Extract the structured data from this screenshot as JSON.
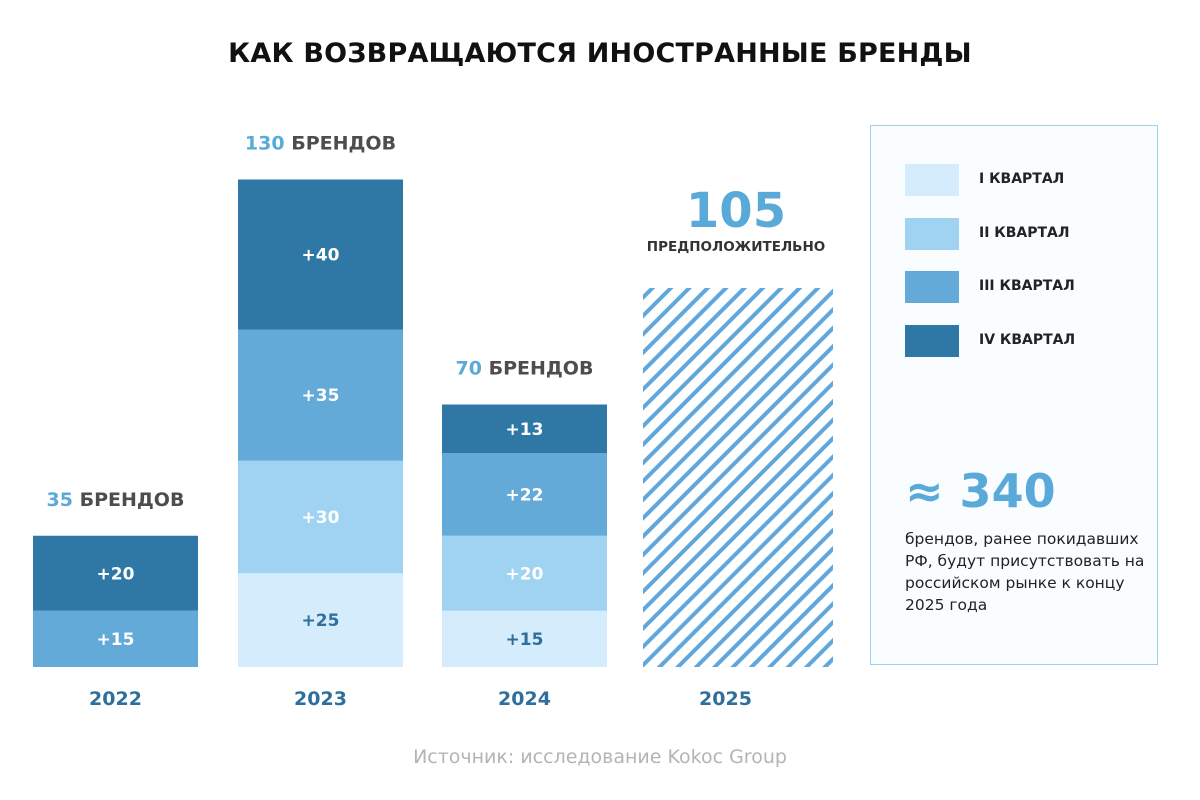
{
  "title": "КАК ВОЗВРАЩАЮТСЯ ИНОСТРАННЫЕ БРЕНДЫ",
  "legend": {
    "items": [
      {
        "label": "I КВАРТАЛ",
        "color": "#d4ecfc"
      },
      {
        "label": "II КВАРТАЛ",
        "color": "#a0d2f2"
      },
      {
        "label": "III КВАРТАЛ",
        "color": "#63aad9"
      },
      {
        "label": "IV КВАРТАЛ",
        "color": "#2f78a6"
      }
    ],
    "total_value": "≈ 340",
    "total_note": "брендов, ранее покидавших РФ, будут присутствовать на российском рынке к концу 2025 года"
  },
  "source": "Источник: исследование Kokoc Group",
  "chart_data": {
    "type": "bar",
    "stacked": true,
    "categories": [
      "2022",
      "2023",
      "2024",
      "2025"
    ],
    "series": [
      {
        "name": "I КВАРТАЛ",
        "values": [
          null,
          25,
          15,
          null
        ]
      },
      {
        "name": "II КВАРТАЛ",
        "values": [
          null,
          30,
          20,
          null
        ]
      },
      {
        "name": "III КВАРТАЛ",
        "values": [
          15,
          35,
          22,
          null
        ]
      },
      {
        "name": "IV КВАРТАЛ",
        "values": [
          20,
          40,
          13,
          null
        ]
      }
    ],
    "segment_labels": [
      [
        "+15",
        "+20"
      ],
      [
        "+25",
        "+30",
        "+35",
        "+40"
      ],
      [
        "+15",
        "+20",
        "+22",
        "+13"
      ],
      []
    ],
    "totals": [
      {
        "number": "35",
        "suffix": " БРЕНДОВ"
      },
      {
        "number": "130",
        "suffix": " БРЕНДОВ"
      },
      {
        "number": "70",
        "suffix": " БРЕНДОВ"
      }
    ],
    "forecast": {
      "category": "2025",
      "value": 105,
      "label": "105",
      "note": "ПРЕДПОЛОЖИТЕЛЬНО"
    },
    "ylim": [
      0,
      130
    ],
    "xlabel": "",
    "ylabel": ""
  }
}
